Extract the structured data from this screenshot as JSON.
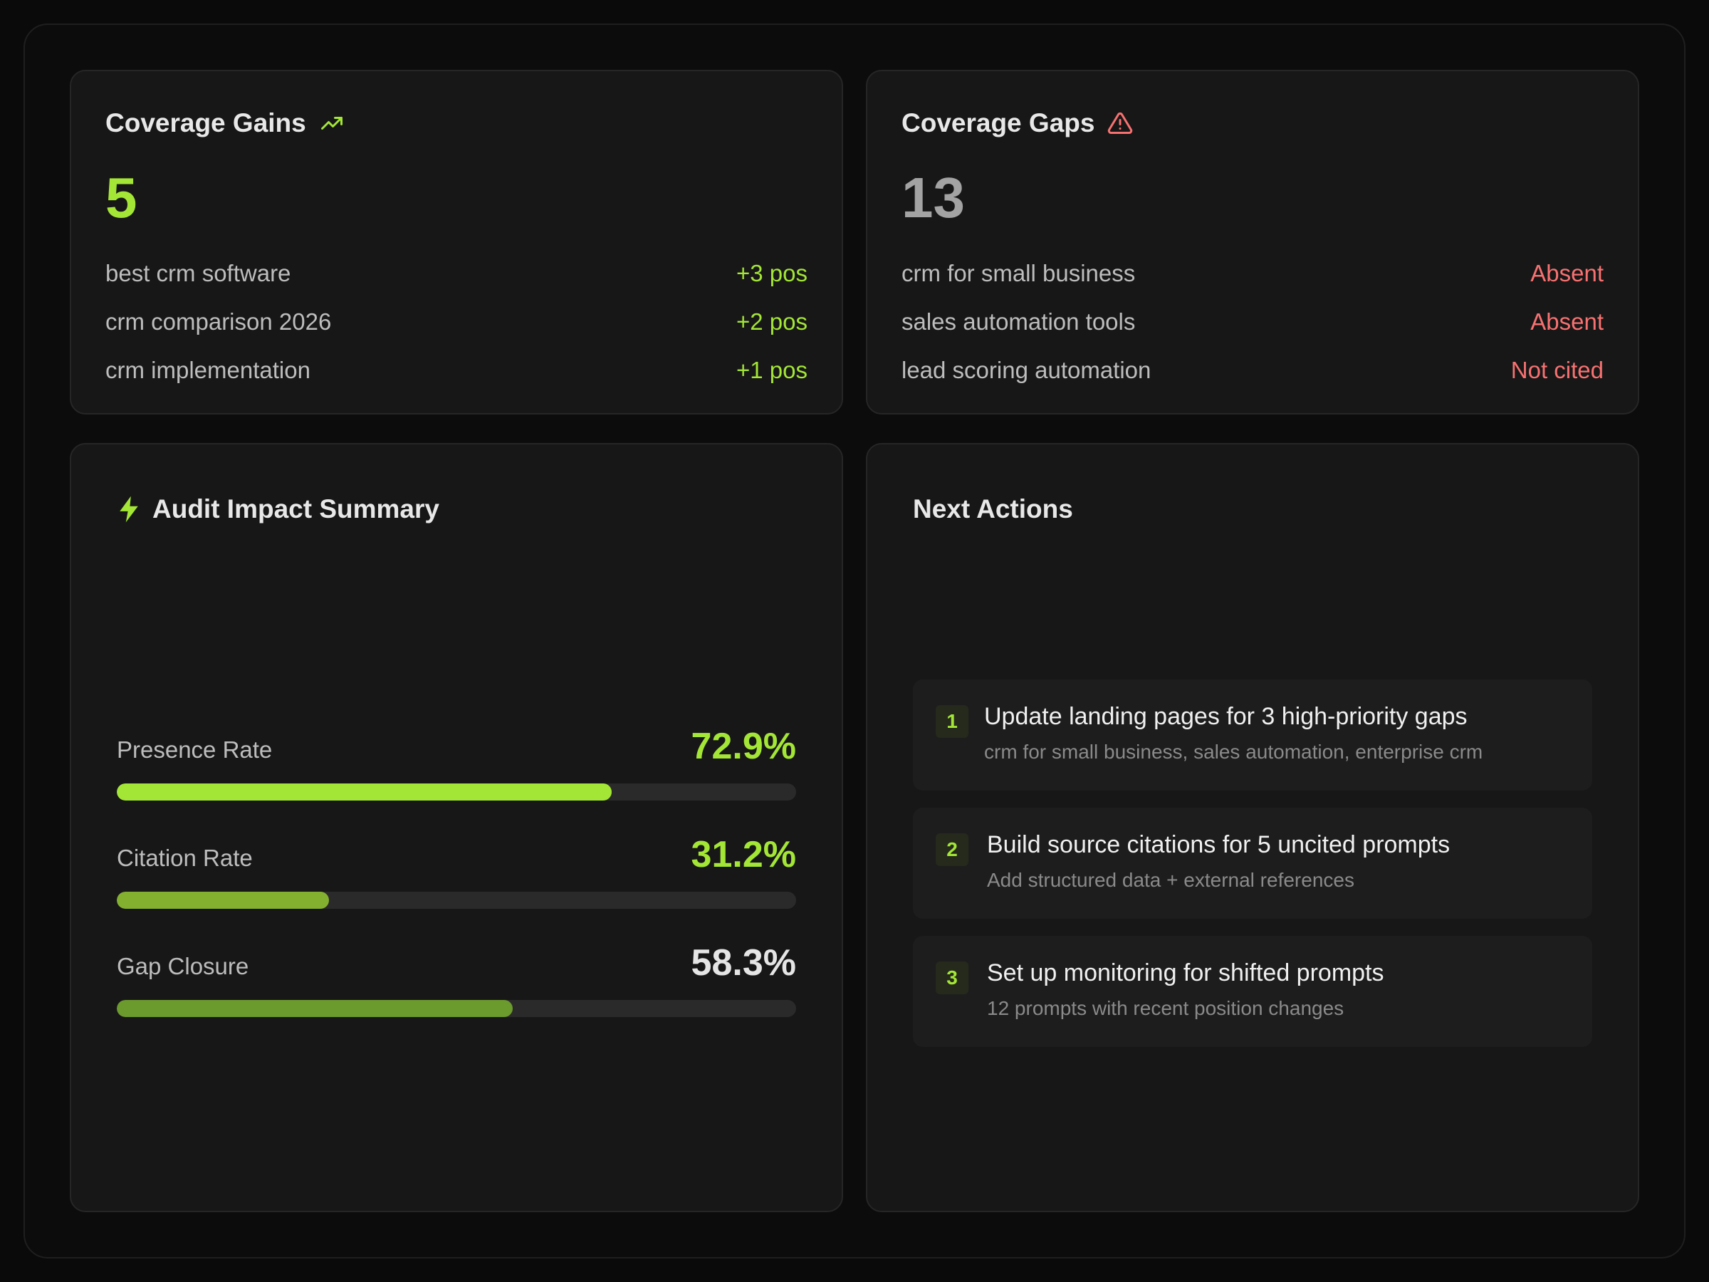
{
  "colors": {
    "accent": "#a3e635",
    "accent_mid": "#84b02f",
    "accent_dark": "#6b9a2d",
    "danger": "#f87171",
    "muted_number": "#a3a3a3",
    "value_neutral": "#e5e5e5"
  },
  "gains": {
    "title": "Coverage Gains",
    "icon": "trending-up-icon",
    "count": "5",
    "items": [
      {
        "keyword": "best crm software",
        "change": "+3 pos"
      },
      {
        "keyword": "crm comparison 2026",
        "change": "+2 pos"
      },
      {
        "keyword": "crm implementation",
        "change": "+1 pos"
      }
    ]
  },
  "gaps": {
    "title": "Coverage Gaps",
    "icon": "alert-triangle-icon",
    "count": "13",
    "items": [
      {
        "keyword": "crm for small business",
        "status": "Absent"
      },
      {
        "keyword": "sales automation tools",
        "status": "Absent"
      },
      {
        "keyword": "lead scoring automation",
        "status": "Not cited"
      }
    ]
  },
  "audit": {
    "title": "Audit Impact Summary",
    "icon": "lightning-bolt-icon",
    "metrics": [
      {
        "label": "Presence Rate",
        "value": "72.9%",
        "fraction": 0.729
      },
      {
        "label": "Citation Rate",
        "value": "31.2%",
        "fraction": 0.312
      },
      {
        "label": "Gap Closure",
        "value": "58.3%",
        "fraction": 0.583
      }
    ]
  },
  "next": {
    "title": "Next Actions",
    "actions": [
      {
        "num": "1",
        "title": "Update landing pages for 3 high-priority gaps",
        "sub": "crm for small business, sales automation, enterprise crm"
      },
      {
        "num": "2",
        "title": "Build source citations for 5 uncited prompts",
        "sub": "Add structured data + external references"
      },
      {
        "num": "3",
        "title": "Set up monitoring for shifted prompts",
        "sub": "12 prompts with recent position changes"
      }
    ]
  }
}
